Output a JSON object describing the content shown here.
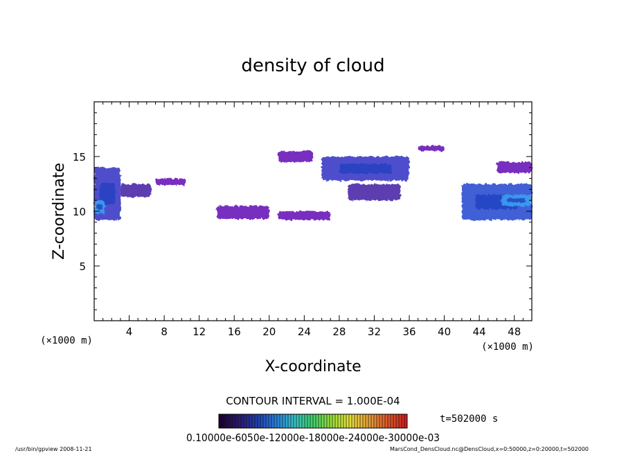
{
  "chart_data": {
    "type": "heatmap",
    "title": "density of cloud",
    "xlabel": "X-coordinate",
    "ylabel": "Z-coordinate",
    "x_unit": "(×1000 m)",
    "y_unit": "(×1000 m)",
    "xlim": [
      0,
      50
    ],
    "ylim": [
      0,
      20
    ],
    "x_ticks": [
      "4",
      "8",
      "12",
      "16",
      "20",
      "24",
      "28",
      "32",
      "36",
      "40",
      "44",
      "48"
    ],
    "y_ticks": [
      "5",
      "10",
      "15"
    ],
    "contour_interval": "CONTOUR INTERVAL = 1.000E-04",
    "time_label": "t=502000 s",
    "colorbar_labels": "0.10000e-6050e-12000e-18000e-24000e-30000e-03",
    "colorbar_colors": [
      "#1a0030",
      "#2b1a6e",
      "#1f3fb0",
      "#2a7fe0",
      "#35c2c8",
      "#3fd36a",
      "#9ae03a",
      "#e8e03a",
      "#e8a03a",
      "#e05a2a",
      "#d02020"
    ],
    "cloud_regions": [
      {
        "x": [
          0,
          3
        ],
        "z": [
          9.2,
          14
        ],
        "level": 3
      },
      {
        "x": [
          0,
          1.2
        ],
        "z": [
          9.8,
          11
        ],
        "level": 6
      },
      {
        "x": [
          3,
          6.5
        ],
        "z": [
          11.3,
          12.5
        ],
        "level": 2
      },
      {
        "x": [
          7,
          10.5
        ],
        "z": [
          12.4,
          13
        ],
        "level": 1
      },
      {
        "x": [
          14,
          20
        ],
        "z": [
          9.3,
          10.5
        ],
        "level": 1
      },
      {
        "x": [
          21,
          27
        ],
        "z": [
          9.2,
          10
        ],
        "level": 1
      },
      {
        "x": [
          21,
          25
        ],
        "z": [
          14.5,
          15.5
        ],
        "level": 1
      },
      {
        "x": [
          26,
          36
        ],
        "z": [
          12.8,
          15
        ],
        "level": 3
      },
      {
        "x": [
          29,
          35
        ],
        "z": [
          11,
          12.5
        ],
        "level": 2
      },
      {
        "x": [
          37,
          40
        ],
        "z": [
          15.5,
          16
        ],
        "level": 1
      },
      {
        "x": [
          42,
          50
        ],
        "z": [
          9.2,
          12.5
        ],
        "level": 4
      },
      {
        "x": [
          46.5,
          50
        ],
        "z": [
          10.5,
          11.5
        ],
        "level": 6
      },
      {
        "x": [
          46,
          50
        ],
        "z": [
          13.5,
          14.5
        ],
        "level": 1
      }
    ]
  },
  "footer": {
    "program": "/usr/bin/gpview   2008-11-21",
    "source": "MarsCond_DensCloud.nc@DensCloud,x=0:50000,z=0:20000,t=502000"
  }
}
